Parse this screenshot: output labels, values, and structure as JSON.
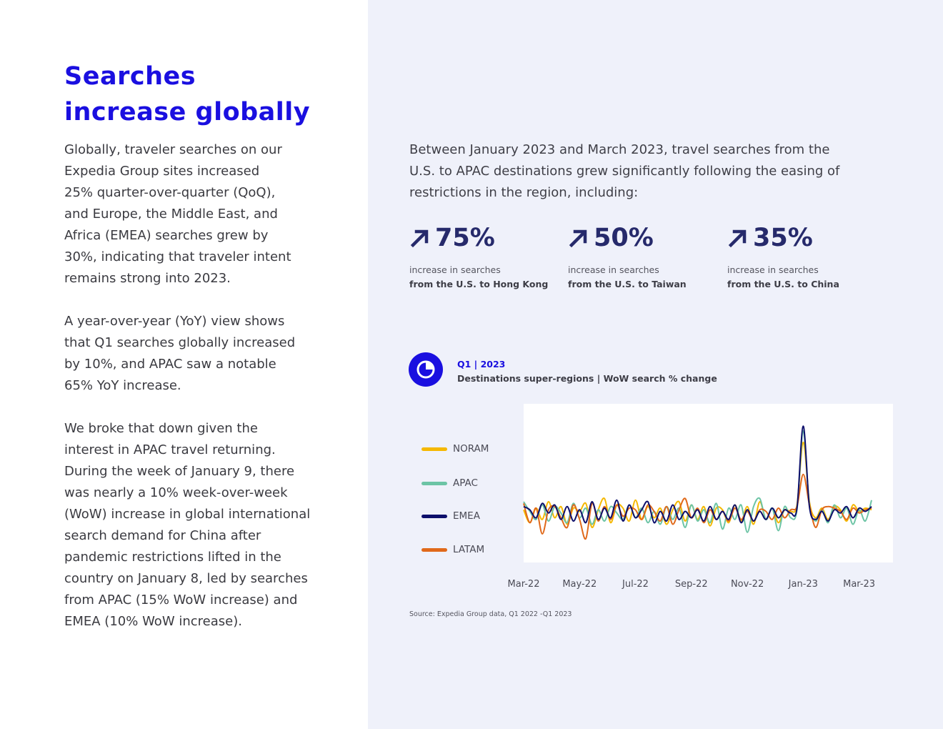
{
  "title": "Searches\nincrease globally",
  "paragraphs": [
    "Globally, traveler searches on our\nExpedia Group sites increased\n25% quarter-over-quarter (QoQ),\nand Europe, the Middle East, and\nAfrica (EMEA) searches grew by\n30%, indicating that traveler intent\nremains strong into 2023.",
    "A year-over-year (YoY) view shows\nthat Q1 searches globally increased\nby 10%, and APAC saw a notable\n65% YoY increase.",
    "We broke that down given the\ninterest in APAC travel returning.\nDuring the week of January 9, there\nwas nearly a 10% week-over-week\n(WoW) increase in global international\nsearch demand for China after\npandemic restrictions lifted in the\ncountry on January 8, led by searches\nfrom APAC (15% WoW increase) and\nEMEA (10% WoW increase)."
  ],
  "intro": "Between January 2023 and March 2023, travel searches from the\nU.S. to APAC destinations grew significantly following the easing of\nrestrictions in the region, including:",
  "stats": [
    {
      "value": "75%",
      "caption": "increase in searches",
      "detail": "from the U.S. to Hong Kong"
    },
    {
      "value": "50%",
      "caption": "increase in searches",
      "detail": "from the U.S. to Taiwan"
    },
    {
      "value": "35%",
      "caption": "increase in searches",
      "detail": "from the U.S. to China"
    }
  ],
  "chart_kicker": "Q1 | 2023",
  "chart_title": "Destinations super-regions | WoW search % change",
  "source": "Source: Expedia Group data, Q1 2022 -Q1 2023",
  "colors": {
    "accent": "#1a0fe0",
    "stat": "#262a6b",
    "NORAM": "#f5b800",
    "APAC": "#6cc4a5",
    "EMEA": "#0d0f6b",
    "LATAM": "#e0691a"
  },
  "chart_data": {
    "type": "line",
    "title": "Destinations super-regions | WoW search % change",
    "xlabel": "",
    "ylabel": "",
    "x_tick_labels": [
      "Mar-22",
      "May-22",
      "Jul-22",
      "Sep-22",
      "Nov-22",
      "Jan-23",
      "Mar-23"
    ],
    "x_range": [
      0,
      56
    ],
    "x_tick_positions": [
      0,
      9,
      18,
      27,
      36,
      45,
      54
    ],
    "ylim": [
      -20,
      60
    ],
    "grid": false,
    "y_axis_visible": false,
    "legend": "left",
    "series": [
      {
        "name": "NORAM",
        "values": [
          3,
          -5,
          4,
          -3,
          8,
          -2,
          5,
          -6,
          4,
          2,
          7,
          -8,
          3,
          10,
          -5,
          6,
          4,
          -4,
          9,
          -3,
          5,
          -2,
          4,
          -6,
          3,
          8,
          -4,
          6,
          -3,
          5,
          -7,
          4,
          3,
          -5,
          6,
          -4,
          5,
          -6,
          8,
          -3,
          4,
          -5,
          3,
          2,
          6,
          45,
          8,
          -2,
          4,
          -3,
          5,
          3,
          -4,
          6,
          2,
          4,
          3
        ]
      },
      {
        "name": "APAC",
        "values": [
          8,
          2,
          -3,
          6,
          -4,
          5,
          1,
          -5,
          7,
          -2,
          4,
          -6,
          3,
          -4,
          5,
          1,
          -3,
          6,
          -2,
          4,
          -5,
          2,
          -6,
          5,
          -3,
          4,
          -8,
          6,
          -4,
          3,
          -5,
          7,
          -9,
          4,
          -3,
          6,
          -11,
          5,
          10,
          -3,
          4,
          -10,
          5,
          -2,
          3,
          52,
          6,
          -4,
          3,
          -5,
          6,
          -2,
          4,
          -6,
          3,
          -4,
          9
        ]
      },
      {
        "name": "EMEA",
        "values": [
          5,
          3,
          -2,
          7,
          1,
          6,
          -3,
          5,
          -4,
          3,
          -5,
          8,
          -3,
          4,
          -2,
          9,
          -4,
          6,
          -2,
          3,
          8,
          -5,
          2,
          -4,
          6,
          -3,
          2,
          -2,
          3,
          -4,
          5,
          -3,
          2,
          -3,
          6,
          -5,
          3,
          -4,
          2,
          -3,
          4,
          -2,
          3,
          1,
          4,
          55,
          5,
          -3,
          2,
          -4,
          3,
          1,
          5,
          -2,
          4,
          2,
          5
        ]
      },
      {
        "name": "LATAM",
        "values": [
          7,
          -5,
          4,
          -12,
          3,
          5,
          -2,
          -8,
          6,
          -3,
          -15,
          7,
          -4,
          5,
          -3,
          6,
          -1,
          4,
          3,
          -3,
          6,
          2,
          -4,
          5,
          -6,
          3,
          10,
          -2,
          4,
          -5,
          3,
          -3,
          2,
          -4,
          4,
          -3,
          2,
          -4,
          3,
          2,
          -3,
          4,
          -2,
          3,
          5,
          25,
          6,
          -8,
          3,
          5,
          4,
          2,
          -3,
          4,
          1,
          3,
          4
        ]
      }
    ]
  }
}
